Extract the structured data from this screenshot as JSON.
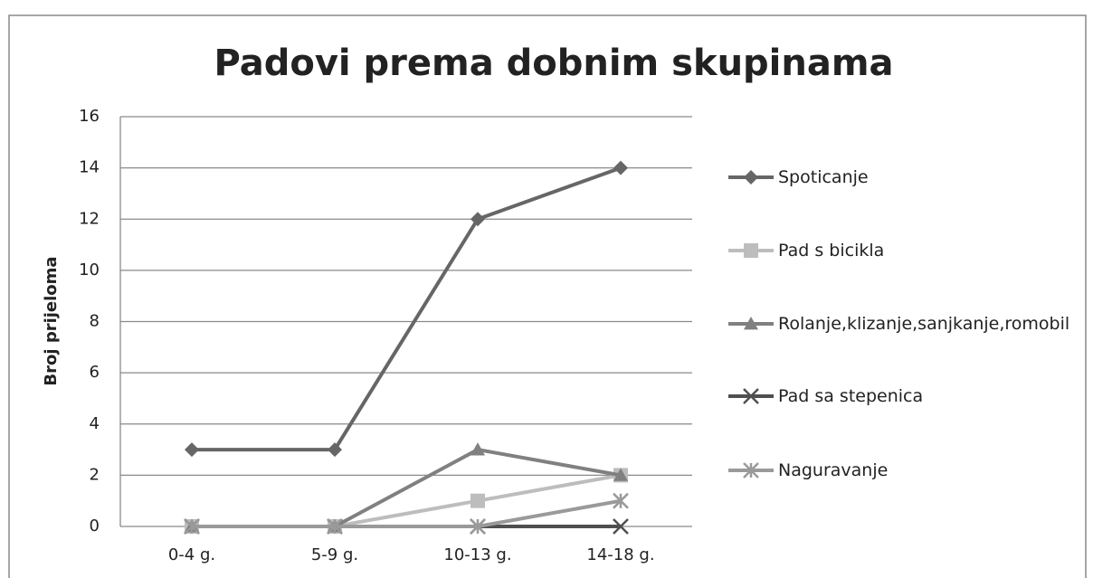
{
  "chart_data": {
    "type": "line",
    "title": "Padovi prema dobnim skupinama",
    "y_label": "Broj prijeloma",
    "categories": [
      "0-4 g.",
      "5-9 g.",
      "10-13 g.",
      "14-18 g."
    ],
    "series": [
      {
        "name": "Spoticanje",
        "color": "#666666",
        "marker": "diamond",
        "values": [
          3,
          3,
          12,
          14
        ]
      },
      {
        "name": "Pad s bicikla",
        "color": "#bdbdbd",
        "marker": "square",
        "values": [
          0,
          0,
          1,
          2
        ]
      },
      {
        "name": "Rolanje,klizanje,sanjkanje,romobil",
        "color": "#808080",
        "marker": "triangle",
        "values": [
          0,
          0,
          3,
          2
        ]
      },
      {
        "name": "Pad sa stepenica",
        "color": "#4f4f4f",
        "marker": "x",
        "values": [
          0,
          0,
          0,
          0
        ]
      },
      {
        "name": "Naguravanje",
        "color": "#9a9a9a",
        "marker": "star",
        "values": [
          0,
          0,
          0,
          1
        ]
      }
    ],
    "ylim": [
      0,
      16
    ],
    "yticks": [
      0,
      2,
      4,
      6,
      8,
      10,
      12,
      14,
      16
    ],
    "grid": true,
    "legend": "right"
  }
}
